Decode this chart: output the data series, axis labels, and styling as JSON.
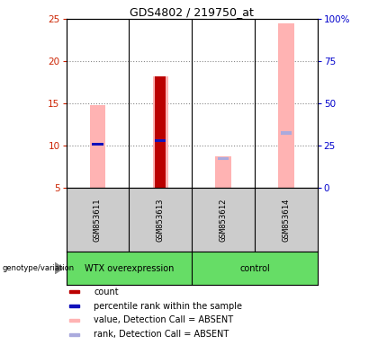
{
  "title": "GDS4802 / 219750_at",
  "samples": [
    "GSM853611",
    "GSM853613",
    "GSM853612",
    "GSM853614"
  ],
  "ylim_left": [
    5,
    25
  ],
  "ylim_right": [
    0,
    100
  ],
  "yticks_left": [
    5,
    10,
    15,
    20,
    25
  ],
  "yticks_right": [
    0,
    25,
    50,
    75,
    100
  ],
  "pink_bar_values": [
    14.8,
    18.2,
    8.7,
    24.5
  ],
  "red_bar_values": [
    null,
    18.2,
    null,
    null
  ],
  "blue_dot_values": [
    10.2,
    10.6,
    null,
    null
  ],
  "light_blue_dot_values": [
    null,
    null,
    8.5,
    11.5
  ],
  "pink_bar_color": "#ffb3b3",
  "red_bar_color": "#bb0000",
  "blue_dot_color": "#1111bb",
  "light_blue_dot_color": "#aaaadd",
  "left_axis_color": "#cc2200",
  "right_axis_color": "#0000cc",
  "grid_color": "#888888",
  "legend_items": [
    {
      "label": "count",
      "color": "#bb0000"
    },
    {
      "label": "percentile rank within the sample",
      "color": "#1111bb"
    },
    {
      "label": "value, Detection Call = ABSENT",
      "color": "#ffb3b3"
    },
    {
      "label": "rank, Detection Call = ABSENT",
      "color": "#aaaadd"
    }
  ],
  "group1_label": "WTX overexpression",
  "group2_label": "control",
  "group_color": "#66dd66",
  "sample_bg_color": "#cccccc",
  "genotype_label": "genotype/variation"
}
